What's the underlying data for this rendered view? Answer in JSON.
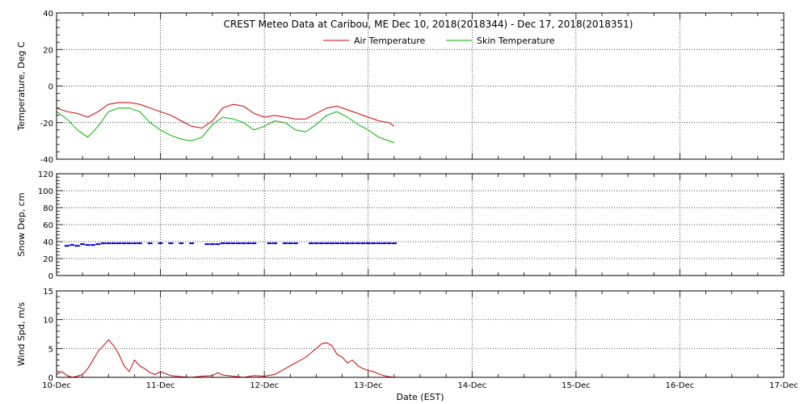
{
  "title": "CREST Meteo Data at Caribou, ME   Dec 10, 2018(2018344) - Dec 17, 2018(2018351)",
  "x_axis": {
    "label": "Date (EST)",
    "ticks": [
      "10-Dec",
      "11-Dec",
      "12-Dec",
      "13-Dec",
      "14-Dec",
      "15-Dec",
      "16-Dec",
      "17-Dec"
    ],
    "range": [
      0,
      7
    ]
  },
  "colors": {
    "air": "#d00000",
    "skin": "#00b000",
    "snow": "#0000c8",
    "wind": "#d00000"
  },
  "chart_data": [
    {
      "type": "line",
      "ylabel": "Temperature, Deg C",
      "ylim": [
        -40,
        40
      ],
      "yticks": [
        -40,
        -20,
        0,
        20,
        40
      ],
      "grid": true,
      "legend_placement": "top",
      "series": [
        {
          "name": "Air Temperature",
          "x": [
            0.0,
            0.1,
            0.2,
            0.3,
            0.4,
            0.5,
            0.6,
            0.7,
            0.8,
            0.9,
            1.0,
            1.1,
            1.2,
            1.3,
            1.4,
            1.5,
            1.6,
            1.7,
            1.8,
            1.9,
            2.0,
            2.1,
            2.2,
            2.3,
            2.4,
            2.5,
            2.6,
            2.7,
            2.8,
            2.9,
            3.0,
            3.1,
            3.2,
            3.25
          ],
          "y": [
            -12,
            -14,
            -15,
            -17,
            -14,
            -10,
            -9,
            -9,
            -10,
            -12,
            -14,
            -16,
            -19,
            -22,
            -23,
            -19,
            -12,
            -10,
            -11,
            -15,
            -17,
            -16,
            -17,
            -18,
            -18,
            -15,
            -12,
            -11,
            -13,
            -15,
            -17,
            -19,
            -20,
            -22
          ]
        },
        {
          "name": "Skin Temperature",
          "x": [
            0.0,
            0.1,
            0.2,
            0.3,
            0.4,
            0.5,
            0.6,
            0.7,
            0.8,
            0.9,
            1.0,
            1.1,
            1.2,
            1.3,
            1.4,
            1.5,
            1.6,
            1.7,
            1.8,
            1.9,
            2.0,
            2.1,
            2.2,
            2.3,
            2.4,
            2.5,
            2.6,
            2.7,
            2.8,
            2.9,
            3.0,
            3.1,
            3.2,
            3.25
          ],
          "y": [
            -14,
            -18,
            -24,
            -28,
            -22,
            -14,
            -12,
            -12,
            -14,
            -20,
            -24,
            -27,
            -29,
            -30,
            -28,
            -21,
            -17,
            -18,
            -20,
            -24,
            -22,
            -19,
            -20,
            -24,
            -25,
            -21,
            -16,
            -14,
            -17,
            -21,
            -24,
            -28,
            -30,
            -31
          ]
        }
      ]
    },
    {
      "type": "scatter",
      "ylabel": "Snow Dep, cm",
      "ylim": [
        0,
        120
      ],
      "yticks": [
        0,
        20,
        40,
        60,
        80,
        100,
        120
      ],
      "grid": true,
      "series": [
        {
          "x": [
            0.1,
            0.15,
            0.2,
            0.25,
            0.3,
            0.35,
            0.4,
            0.45,
            0.5,
            0.55,
            0.6,
            0.65,
            0.7,
            0.75,
            0.8,
            0.9,
            1.0,
            1.1,
            1.2,
            1.3,
            1.45,
            1.5,
            1.55,
            1.6,
            1.65,
            1.7,
            1.75,
            1.8,
            1.85,
            1.9,
            2.05,
            2.1,
            2.2,
            2.25,
            2.3,
            2.45,
            2.5,
            2.55,
            2.6,
            2.65,
            2.7,
            2.75,
            2.8,
            2.85,
            2.9,
            2.95,
            3.0,
            3.05,
            3.1,
            3.15,
            3.2,
            3.25
          ],
          "y": [
            35,
            36,
            35,
            37,
            36,
            36,
            37,
            38,
            38,
            38,
            38,
            38,
            38,
            38,
            38,
            38,
            38,
            38,
            38,
            38,
            37,
            37,
            37,
            38,
            38,
            38,
            38,
            38,
            38,
            38,
            38,
            38,
            38,
            38,
            38,
            38,
            38,
            38,
            38,
            38,
            38,
            38,
            38,
            38,
            38,
            38,
            38,
            38,
            38,
            38,
            38,
            38
          ]
        }
      ]
    },
    {
      "type": "line",
      "ylabel": "Wind Spd, m/s",
      "ylim": [
        0,
        15
      ],
      "yticks": [
        0,
        5,
        10,
        15
      ],
      "grid": true,
      "series": [
        {
          "x": [
            0.0,
            0.05,
            0.1,
            0.15,
            0.2,
            0.25,
            0.3,
            0.35,
            0.4,
            0.45,
            0.5,
            0.55,
            0.6,
            0.65,
            0.7,
            0.75,
            0.8,
            0.85,
            0.9,
            0.95,
            1.0,
            1.1,
            1.2,
            1.3,
            1.4,
            1.5,
            1.55,
            1.6,
            1.7,
            1.8,
            1.9,
            2.0,
            2.1,
            2.2,
            2.3,
            2.4,
            2.5,
            2.55,
            2.6,
            2.65,
            2.7,
            2.75,
            2.8,
            2.85,
            2.9,
            2.95,
            3.0,
            3.05,
            3.1,
            3.15,
            3.2,
            3.25
          ],
          "y": [
            0.5,
            1.0,
            0.3,
            0.0,
            0.2,
            0.5,
            1.5,
            3.0,
            4.5,
            5.5,
            6.5,
            5.5,
            4.0,
            2.0,
            1.0,
            3.0,
            2.0,
            1.5,
            0.8,
            0.5,
            1.0,
            0.3,
            0.1,
            0.0,
            0.2,
            0.3,
            0.8,
            0.4,
            0.2,
            0.0,
            0.3,
            0.2,
            0.5,
            1.5,
            2.5,
            3.5,
            5.0,
            5.8,
            6.0,
            5.5,
            4.0,
            3.5,
            2.5,
            3.0,
            2.0,
            1.5,
            1.2,
            1.0,
            0.6,
            0.3,
            0.1,
            0.0
          ]
        }
      ]
    }
  ]
}
